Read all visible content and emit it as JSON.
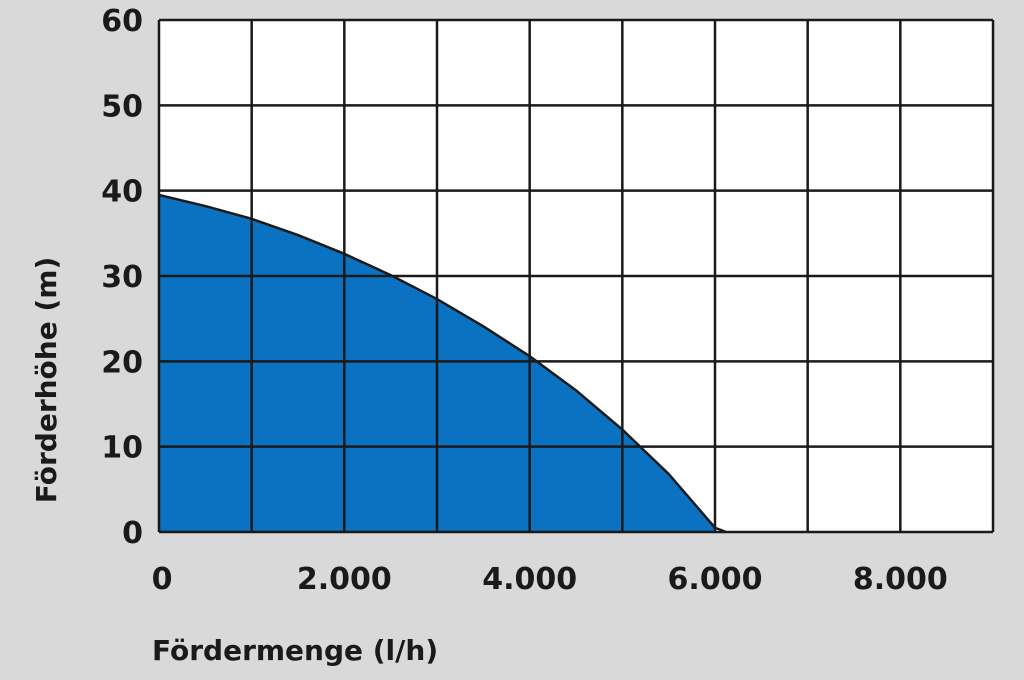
{
  "chart_data": {
    "type": "area",
    "title": "",
    "xlabel": "Fördermenge (l/h)",
    "ylabel": "Förderhöhe (m)",
    "xlim": [
      0,
      9000
    ],
    "ylim": [
      0,
      60
    ],
    "x_grid_step": 1000,
    "y_grid_step": 10,
    "x_tick_values": [
      0,
      2000,
      4000,
      6000,
      8000
    ],
    "x_tick_labels": [
      "0",
      "2.000",
      "4.000",
      "6.000",
      "8.000"
    ],
    "y_tick_values": [
      0,
      10,
      20,
      30,
      40,
      50,
      60
    ],
    "y_tick_labels": [
      "0",
      "10",
      "20",
      "30",
      "40",
      "50",
      "60"
    ],
    "grid": true,
    "legend": "none",
    "fill_color": "#0a72c1",
    "plot_background": "#ffffff",
    "page_background": "#d9d9d9",
    "series": [
      {
        "x": [
          0,
          500,
          1000,
          1500,
          2000,
          2500,
          3000,
          3500,
          4000,
          4500,
          5000,
          5500,
          6000
        ],
        "y": [
          39.5,
          38.2,
          36.7,
          34.8,
          32.6,
          30.1,
          27.3,
          24.1,
          20.6,
          16.6,
          12.0,
          6.8,
          0.5
        ]
      },
      {
        "x": [
          5250,
          5800,
          6000
        ],
        "y": [
          0,
          0,
          0
        ]
      }
    ]
  }
}
